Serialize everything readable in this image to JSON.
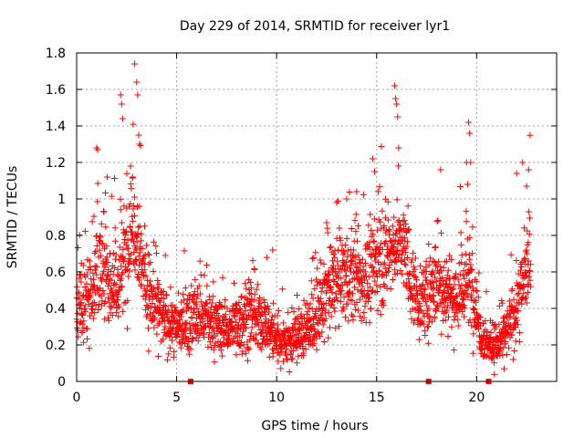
{
  "chart_data": {
    "type": "scatter",
    "title": "Day 229 of 2014, SRMTID for receiver lyr1",
    "xlabel": "GPS time / hours",
    "ylabel": "SRMTID / TECUs",
    "xlim": [
      0,
      24
    ],
    "ylim": [
      0,
      1.8
    ],
    "xticks": [
      0,
      5,
      10,
      15,
      20
    ],
    "xtick_labels": [
      "0",
      "5",
      "10",
      "15",
      "20"
    ],
    "yticks": [
      0,
      0.2,
      0.4,
      0.6,
      0.8,
      1.0,
      1.2,
      1.4,
      1.6,
      1.8
    ],
    "ytick_labels": [
      "0",
      "0.2",
      "0.4",
      "0.6",
      "0.8",
      "1",
      "1.2",
      "1.4",
      "1.6",
      "1.8"
    ],
    "grid": true,
    "marker": "plus",
    "color": "#ff0000",
    "envelope": {
      "description": "Approximate trend of the plotted SRMTID points (hour, mean TECU, spread)",
      "x": [
        0.0,
        0.5,
        1.0,
        1.5,
        2.0,
        2.5,
        2.8,
        3.0,
        3.5,
        4.0,
        4.5,
        5.0,
        5.5,
        6.0,
        6.5,
        7.0,
        7.5,
        8.0,
        8.5,
        9.0,
        9.5,
        10.0,
        10.5,
        11.0,
        11.5,
        12.0,
        12.5,
        13.0,
        13.5,
        14.0,
        14.5,
        15.0,
        15.5,
        16.0,
        16.3,
        16.8,
        17.2,
        17.6,
        18.0,
        18.5,
        19.0,
        19.5,
        19.8,
        20.2,
        20.6,
        21.0,
        21.5,
        22.0,
        22.5,
        22.7
      ],
      "mean": [
        0.38,
        0.45,
        0.6,
        0.58,
        0.5,
        0.7,
        0.9,
        0.85,
        0.5,
        0.4,
        0.32,
        0.3,
        0.32,
        0.36,
        0.33,
        0.3,
        0.28,
        0.32,
        0.36,
        0.33,
        0.3,
        0.24,
        0.22,
        0.24,
        0.28,
        0.36,
        0.46,
        0.55,
        0.58,
        0.55,
        0.55,
        0.65,
        0.7,
        0.75,
        0.75,
        0.52,
        0.4,
        0.48,
        0.55,
        0.5,
        0.45,
        0.55,
        0.5,
        0.28,
        0.2,
        0.2,
        0.26,
        0.4,
        0.62,
        0.7
      ],
      "spread": [
        0.14,
        0.16,
        0.2,
        0.18,
        0.16,
        0.2,
        0.22,
        0.2,
        0.16,
        0.14,
        0.11,
        0.1,
        0.11,
        0.13,
        0.12,
        0.11,
        0.1,
        0.12,
        0.13,
        0.12,
        0.11,
        0.1,
        0.1,
        0.1,
        0.11,
        0.13,
        0.15,
        0.17,
        0.18,
        0.17,
        0.17,
        0.18,
        0.16,
        0.15,
        0.15,
        0.16,
        0.12,
        0.15,
        0.16,
        0.16,
        0.16,
        0.16,
        0.16,
        0.1,
        0.08,
        0.08,
        0.1,
        0.14,
        0.16,
        0.18
      ],
      "samples_per_hour": 100
    },
    "notable_points": {
      "x": [
        1.0,
        1.05,
        2.2,
        2.25,
        2.3,
        2.9,
        3.0,
        3.05,
        3.1,
        3.15,
        2.7,
        2.8,
        15.9,
        15.95,
        16.0,
        16.05,
        16.1,
        14.8,
        14.9,
        19.6,
        19.65,
        19.7,
        19.5,
        19.55,
        18.2,
        22.0,
        22.3,
        22.5,
        22.6,
        13.0,
        13.5,
        14.0,
        9.8,
        12.5
      ],
      "y": [
        1.28,
        1.27,
        1.57,
        1.52,
        1.44,
        1.74,
        1.64,
        1.57,
        1.35,
        1.3,
        1.18,
        1.12,
        1.62,
        1.55,
        1.52,
        1.45,
        1.28,
        1.22,
        1.15,
        1.42,
        1.36,
        1.2,
        1.2,
        1.08,
        1.16,
        1.14,
        1.2,
        1.07,
        1.16,
        0.98,
        1.0,
        1.04,
        0.72,
        0.87
      ]
    },
    "zero_markers": {
      "description": "Small filled markers drawn on the x axis",
      "x": [
        5.7,
        17.6,
        20.6
      ]
    }
  }
}
